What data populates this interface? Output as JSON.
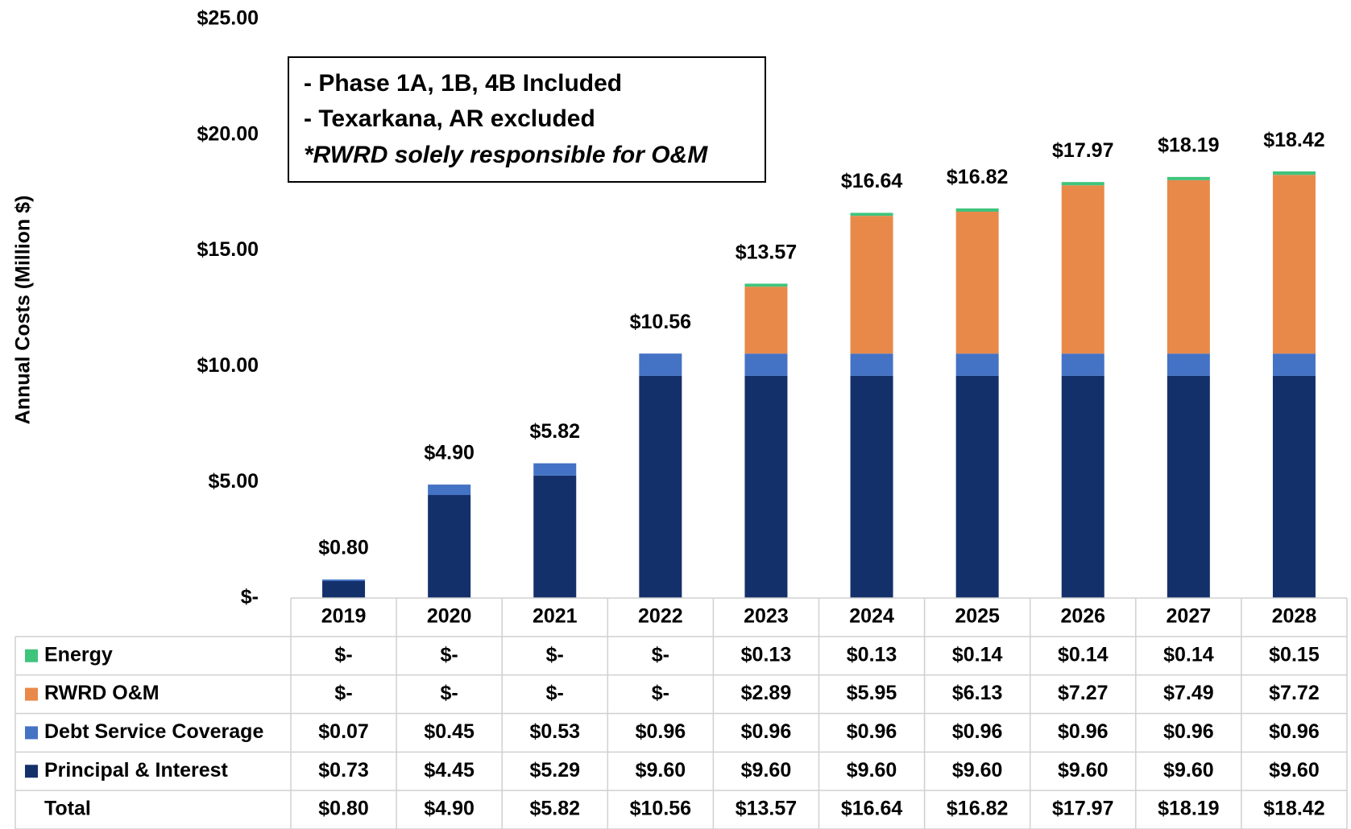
{
  "chart_data": {
    "type": "stacked_bar",
    "y_label": "Annual Costs (Million $)",
    "annotations": [
      "- Phase 1A, 1B, 4B Included",
      "- Texarkana, AR excluded",
      "*RWRD solely responsible for O&M"
    ],
    "categories": [
      "2019",
      "2020",
      "2021",
      "2022",
      "2023",
      "2024",
      "2025",
      "2026",
      "2027",
      "2028"
    ],
    "series": [
      {
        "name": "Principal & Interest",
        "color": "#14306b",
        "values": [
          0.73,
          4.45,
          5.29,
          9.6,
          9.6,
          9.6,
          9.6,
          9.6,
          9.6,
          9.6
        ],
        "value_labels": [
          "$0.73",
          "$4.45",
          "$5.29",
          "$9.60",
          "$9.60",
          "$9.60",
          "$9.60",
          "$9.60",
          "$9.60",
          "$9.60"
        ]
      },
      {
        "name": "Debt Service Coverage",
        "color": "#4472c4",
        "values": [
          0.07,
          0.45,
          0.53,
          0.96,
          0.96,
          0.96,
          0.96,
          0.96,
          0.96,
          0.96
        ],
        "value_labels": [
          "$0.07",
          "$0.45",
          "$0.53",
          "$0.96",
          "$0.96",
          "$0.96",
          "$0.96",
          "$0.96",
          "$0.96",
          "$0.96"
        ]
      },
      {
        "name": "RWRD O&M",
        "color": "#e8894a",
        "values": [
          0,
          0,
          0,
          0,
          2.89,
          5.95,
          6.13,
          7.27,
          7.49,
          7.72
        ],
        "value_labels": [
          "$-",
          "$-",
          "$-",
          "$-",
          "$2.89",
          "$5.95",
          "$6.13",
          "$7.27",
          "$7.49",
          "$7.72"
        ]
      },
      {
        "name": "Energy",
        "color": "#3fc47c",
        "values": [
          0,
          0,
          0,
          0,
          0.13,
          0.13,
          0.14,
          0.14,
          0.14,
          0.15
        ],
        "value_labels": [
          "$-",
          "$-",
          "$-",
          "$-",
          "$0.13",
          "$0.13",
          "$0.14",
          "$0.14",
          "$0.14",
          "$0.15"
        ]
      }
    ],
    "total_name": "Total",
    "totals": [
      0.8,
      4.9,
      5.82,
      10.56,
      13.57,
      16.64,
      16.82,
      17.97,
      18.19,
      18.42
    ],
    "totals_labels": [
      "$0.80",
      "$4.90",
      "$5.82",
      "$10.56",
      "$13.57",
      "$16.64",
      "$16.82",
      "$17.97",
      "$18.19",
      "$18.42"
    ],
    "ylim": [
      0,
      25
    ],
    "yticks": [
      {
        "value": 0,
        "label": "$-"
      },
      {
        "value": 5,
        "label": "$5.00"
      },
      {
        "value": 10,
        "label": "$10.00"
      },
      {
        "value": 15,
        "label": "$15.00"
      },
      {
        "value": 20,
        "label": "$20.00"
      },
      {
        "value": 25,
        "label": "$25.00"
      }
    ]
  }
}
